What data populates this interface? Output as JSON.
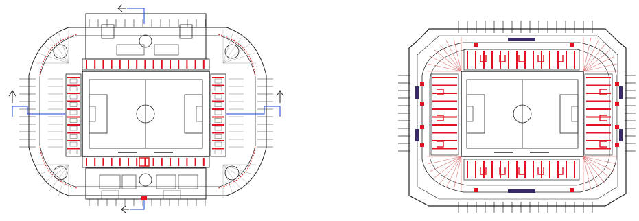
{
  "figure": {
    "panels": [
      {
        "id": "ground-level-plan",
        "colors": {
          "ink": "#222222",
          "seat_red": "#e11122",
          "pitch_line": "#333333",
          "exit_arrow": "#1a3fd6"
        }
      },
      {
        "id": "upper-level-plan",
        "colors": {
          "ink": "#222222",
          "seat_red": "#e11122",
          "pitch_line": "#333333",
          "stair_block": "#3a2a6a"
        }
      }
    ],
    "icons": [
      "exit-arrow-icon",
      "stair-icon",
      "seating-row-icon"
    ]
  }
}
